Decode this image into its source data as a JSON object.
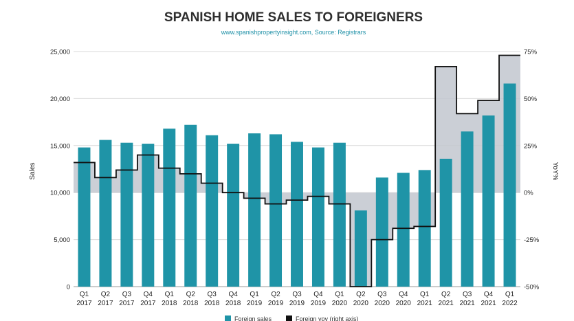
{
  "chart_data": {
    "type": "bar",
    "title": "SPANISH HOME SALES TO FOREIGNERS",
    "subtitle": "www.spanishpropertyinsight.com, Source: Registrars",
    "ylabel": "Sales",
    "y2label": "YoY%",
    "ylim": [
      0,
      25000
    ],
    "y2lim": [
      -50,
      75
    ],
    "yticks": [
      "0",
      "5,000",
      "10,000",
      "15,000",
      "20,000",
      "25,000"
    ],
    "y2ticks": [
      "-50%",
      "-25%",
      "0%",
      "25%",
      "50%",
      "75%"
    ],
    "categories": [
      [
        "Q1",
        "2017"
      ],
      [
        "Q2",
        "2017"
      ],
      [
        "Q3",
        "2017"
      ],
      [
        "Q4",
        "2017"
      ],
      [
        "Q1",
        "2018"
      ],
      [
        "Q2",
        "2018"
      ],
      [
        "Q3",
        "2018"
      ],
      [
        "Q4",
        "2018"
      ],
      [
        "Q1",
        "2019"
      ],
      [
        "Q2",
        "2019"
      ],
      [
        "Q3",
        "2019"
      ],
      [
        "Q4",
        "2019"
      ],
      [
        "Q1",
        "2020"
      ],
      [
        "Q2",
        "2020"
      ],
      [
        "Q3",
        "2020"
      ],
      [
        "Q4",
        "2020"
      ],
      [
        "Q1",
        "2021"
      ],
      [
        "Q2",
        "2021"
      ],
      [
        "Q3",
        "2021"
      ],
      [
        "Q4",
        "2021"
      ],
      [
        "Q1",
        "2022"
      ]
    ],
    "series": [
      {
        "name": "Foreign sales",
        "axis": "left",
        "kind": "bar",
        "color": "#1f94a7",
        "values": [
          14800,
          15600,
          15300,
          15200,
          16800,
          17200,
          16100,
          15200,
          16300,
          16200,
          15400,
          14800,
          15300,
          8100,
          11600,
          12100,
          12400,
          13600,
          16500,
          18200,
          21600
        ]
      },
      {
        "name": "Foreign yoy (right axis)",
        "axis": "right",
        "kind": "step-area",
        "color": "#111111",
        "fill": "#c2c7cf",
        "values": [
          16,
          8,
          12,
          20,
          13,
          10,
          5,
          0,
          -3,
          -6,
          -4,
          -2,
          -6,
          -50,
          -25,
          -19,
          -18,
          67,
          42,
          49,
          73
        ]
      }
    ],
    "legend": "bottom-center",
    "grid": true
  }
}
